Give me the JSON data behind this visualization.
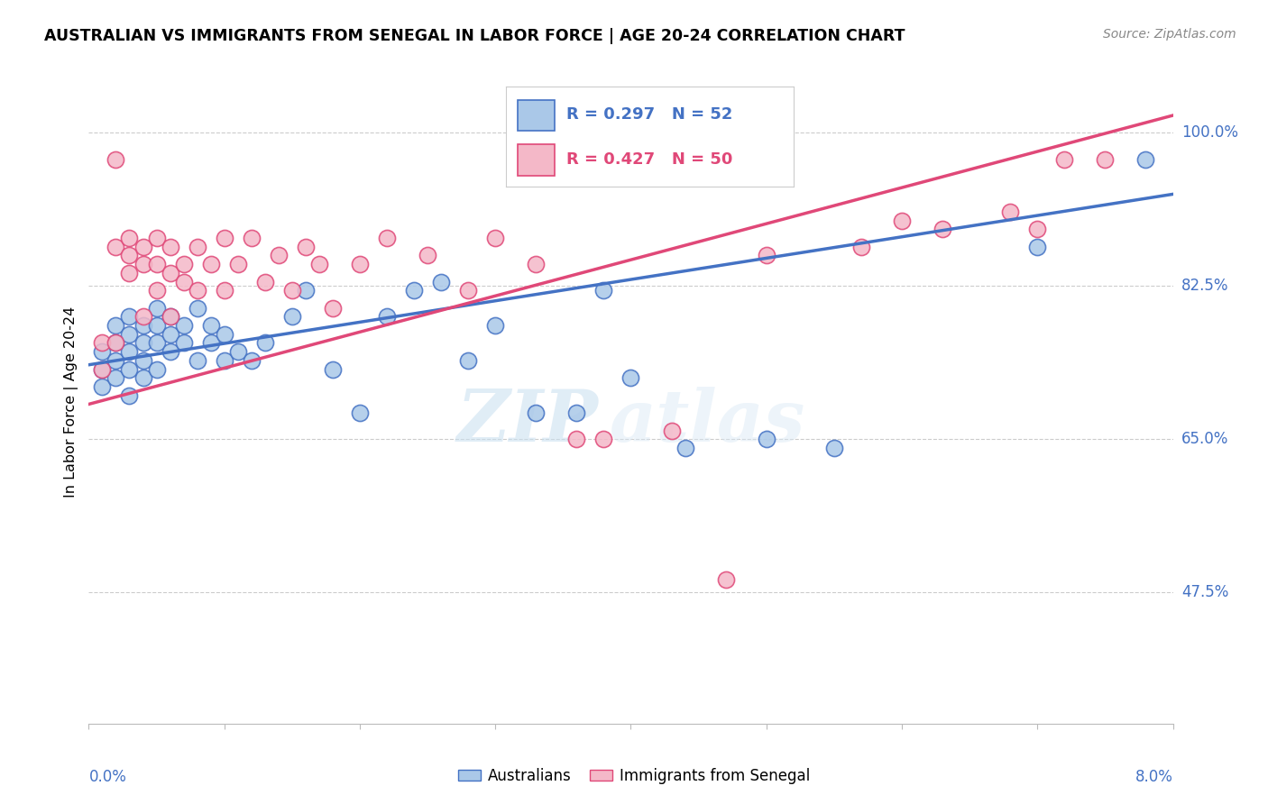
{
  "title": "AUSTRALIAN VS IMMIGRANTS FROM SENEGAL IN LABOR FORCE | AGE 20-24 CORRELATION CHART",
  "source": "Source: ZipAtlas.com",
  "ylabel": "In Labor Force | Age 20-24",
  "xlim": [
    0.0,
    0.08
  ],
  "ylim": [
    0.325,
    1.06
  ],
  "ytick_vals": [
    0.475,
    0.65,
    0.825,
    1.0
  ],
  "ytick_labels": [
    "47.5%",
    "65.0%",
    "82.5%",
    "100.0%"
  ],
  "blue_r": "0.297",
  "blue_n": "52",
  "pink_r": "0.427",
  "pink_n": "50",
  "blue_face": "#aac8e8",
  "blue_edge": "#4472c4",
  "pink_face": "#f4b8c8",
  "pink_edge": "#e04878",
  "blue_line_color": "#4472c4",
  "pink_line_color": "#e04878",
  "watermark_zip": "ZIP",
  "watermark_atlas": "atlas",
  "blue_x": [
    0.001,
    0.001,
    0.001,
    0.002,
    0.002,
    0.002,
    0.002,
    0.003,
    0.003,
    0.003,
    0.003,
    0.003,
    0.004,
    0.004,
    0.004,
    0.004,
    0.005,
    0.005,
    0.005,
    0.005,
    0.006,
    0.006,
    0.006,
    0.007,
    0.007,
    0.008,
    0.008,
    0.009,
    0.009,
    0.01,
    0.01,
    0.011,
    0.012,
    0.013,
    0.015,
    0.016,
    0.018,
    0.02,
    0.022,
    0.024,
    0.026,
    0.028,
    0.03,
    0.033,
    0.036,
    0.038,
    0.04,
    0.044,
    0.05,
    0.055,
    0.07,
    0.078
  ],
  "blue_y": [
    0.75,
    0.73,
    0.71,
    0.78,
    0.76,
    0.74,
    0.72,
    0.79,
    0.77,
    0.75,
    0.73,
    0.7,
    0.78,
    0.76,
    0.74,
    0.72,
    0.8,
    0.78,
    0.76,
    0.73,
    0.79,
    0.77,
    0.75,
    0.78,
    0.76,
    0.8,
    0.74,
    0.78,
    0.76,
    0.77,
    0.74,
    0.75,
    0.74,
    0.76,
    0.79,
    0.82,
    0.73,
    0.68,
    0.79,
    0.82,
    0.83,
    0.74,
    0.78,
    0.68,
    0.68,
    0.82,
    0.72,
    0.64,
    0.65,
    0.64,
    0.87,
    0.97
  ],
  "pink_x": [
    0.001,
    0.001,
    0.002,
    0.002,
    0.002,
    0.003,
    0.003,
    0.003,
    0.004,
    0.004,
    0.004,
    0.005,
    0.005,
    0.005,
    0.006,
    0.006,
    0.006,
    0.007,
    0.007,
    0.008,
    0.008,
    0.009,
    0.01,
    0.01,
    0.011,
    0.012,
    0.013,
    0.014,
    0.015,
    0.016,
    0.017,
    0.018,
    0.02,
    0.022,
    0.025,
    0.028,
    0.03,
    0.033,
    0.036,
    0.038,
    0.043,
    0.047,
    0.05,
    0.057,
    0.06,
    0.063,
    0.068,
    0.07,
    0.072,
    0.075
  ],
  "pink_y": [
    0.76,
    0.73,
    0.97,
    0.87,
    0.76,
    0.88,
    0.86,
    0.84,
    0.87,
    0.85,
    0.79,
    0.88,
    0.85,
    0.82,
    0.87,
    0.84,
    0.79,
    0.85,
    0.83,
    0.87,
    0.82,
    0.85,
    0.88,
    0.82,
    0.85,
    0.88,
    0.83,
    0.86,
    0.82,
    0.87,
    0.85,
    0.8,
    0.85,
    0.88,
    0.86,
    0.82,
    0.88,
    0.85,
    0.65,
    0.65,
    0.66,
    0.49,
    0.86,
    0.87,
    0.9,
    0.89,
    0.91,
    0.89,
    0.97,
    0.97
  ],
  "blue_trend_x0": 0.0,
  "blue_trend_x1": 0.08,
  "blue_trend_y0": 0.735,
  "blue_trend_y1": 0.93,
  "pink_trend_x0": 0.0,
  "pink_trend_x1": 0.08,
  "pink_trend_y0": 0.69,
  "pink_trend_y1": 1.02
}
